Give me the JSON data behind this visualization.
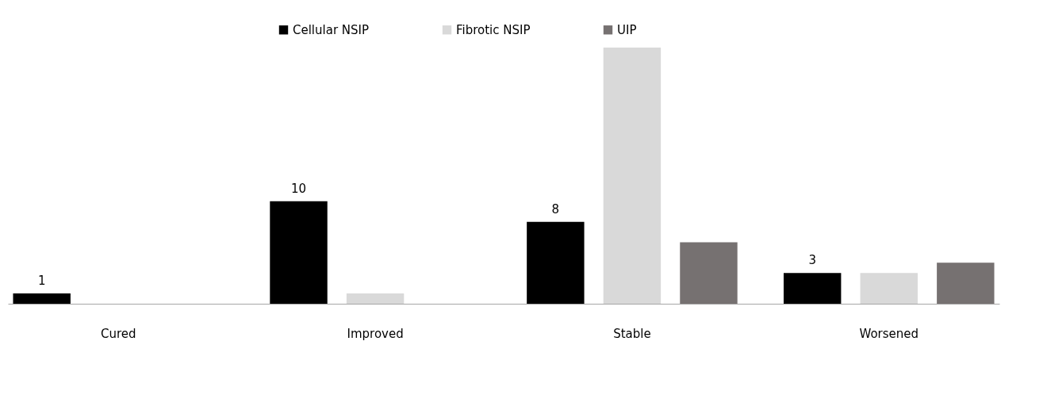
{
  "chart_data": {
    "type": "bar",
    "categories": [
      "Cured",
      "Improved",
      "Stable",
      "Worsened"
    ],
    "series": [
      {
        "name": "Cellular NSIP",
        "color": "#000000",
        "values": [
          1,
          10,
          8,
          3
        ],
        "value_labels": [
          "1",
          "10",
          "8",
          "3"
        ]
      },
      {
        "name": "Fibrotic NSIP",
        "color": "#d9d9d9",
        "values": [
          0,
          1,
          25,
          3
        ],
        "value_labels": [
          null,
          null,
          null,
          null
        ]
      },
      {
        "name": "UIP",
        "color": "#767171",
        "values": [
          0,
          0,
          6,
          4
        ],
        "value_labels": [
          null,
          null,
          null,
          null
        ]
      }
    ],
    "ylim": [
      0,
      25
    ],
    "legend": "top"
  }
}
